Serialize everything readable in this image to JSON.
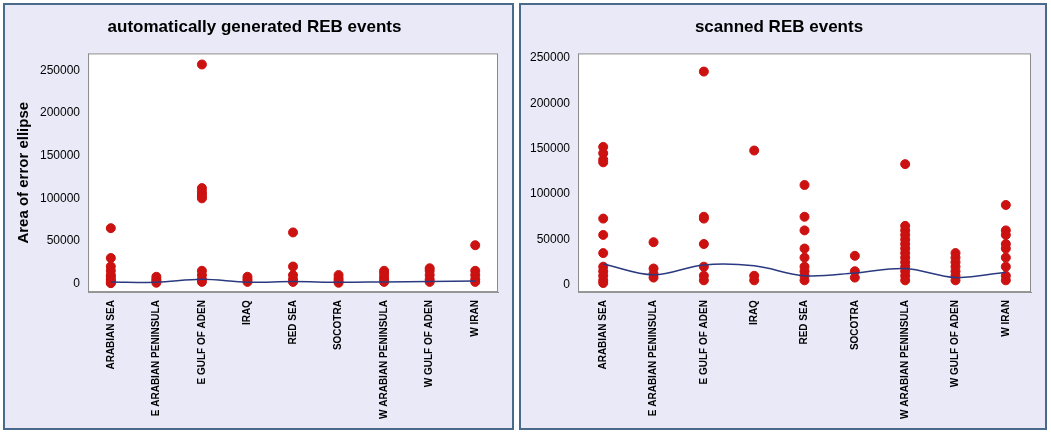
{
  "chart_data": [
    {
      "type": "scatter",
      "title": "automatically generated REB events",
      "y_label": "Area of error ellipse",
      "categories": [
        "ARABIAN SEA",
        "E ARABIAN PENINSULA",
        "E GULF OF ADEN",
        "IRAQ",
        "RED SEA",
        "SOCOTRA",
        "W ARABIAN PENINSULA",
        "W GULF OF ADEN",
        "W IRAN"
      ],
      "series": [
        {
          "type": "scatter",
          "color": "#cc1111",
          "marker": "circle",
          "values": [
            [
              65000,
              30000,
              20000,
              15000,
              10000,
              8000,
              5000,
              3000,
              1000,
              500
            ],
            [
              8000,
              5000,
              3000,
              1000
            ],
            [
              257000,
              112000,
              108000,
              105000,
              102000,
              100000,
              15000,
              10000,
              5000,
              2000
            ],
            [
              8000,
              5000,
              2000
            ],
            [
              60000,
              20000,
              10000,
              5000,
              2000
            ],
            [
              10000,
              6000,
              3000,
              1000
            ],
            [
              15000,
              12000,
              8000,
              5000,
              2000
            ],
            [
              18000,
              15000,
              10000,
              5000,
              2000
            ],
            [
              45000,
              15000,
              10000,
              5000,
              2000
            ]
          ]
        },
        {
          "type": "line",
          "color": "#2b3a80",
          "line_style": "solid",
          "values": [
            2000,
            1500,
            5000,
            1500,
            2500,
            1500,
            2000,
            2500,
            3000
          ]
        }
      ],
      "ylim": [
        -10000,
        270000
      ],
      "yticks": [
        0,
        50000,
        100000,
        150000,
        200000,
        250000
      ],
      "grid": false
    },
    {
      "type": "scatter",
      "title": "scanned REB events",
      "categories": [
        "ARABIAN SEA",
        "E ARABIAN PENINSULA",
        "E GULF OF ADEN",
        "IRAQ",
        "RED SEA",
        "SOCOTRA",
        "W ARABIAN PENINSULA",
        "W GULF OF ADEN",
        "W IRAN"
      ],
      "series": [
        {
          "type": "scatter",
          "color": "#cc1111",
          "marker": "circle",
          "values": [
            [
              152000,
              145000,
              138000,
              135000,
              73000,
              55000,
              35000,
              20000,
              15000,
              10000,
              5000,
              2000
            ],
            [
              47000,
              18000,
              12000,
              8000
            ],
            [
              235000,
              75000,
              73000,
              45000,
              20000,
              10000,
              5000
            ],
            [
              148000,
              10000,
              5000
            ],
            [
              110000,
              75000,
              60000,
              40000,
              30000,
              20000,
              15000,
              10000,
              5000
            ],
            [
              32000,
              15000,
              8000
            ],
            [
              133000,
              65000,
              60000,
              55000,
              50000,
              45000,
              40000,
              35000,
              30000,
              25000,
              20000,
              15000,
              10000,
              5000
            ],
            [
              35000,
              30000,
              25000,
              20000,
              15000,
              10000,
              5000
            ],
            [
              88000,
              60000,
              55000,
              45000,
              40000,
              30000,
              20000,
              10000,
              5000
            ]
          ]
        },
        {
          "type": "line",
          "color": "#2b3a80",
          "line_style": "solid",
          "values": [
            23000,
            11000,
            22000,
            21000,
            10000,
            13000,
            18000,
            8000,
            14000
          ]
        }
      ],
      "ylim": [
        -8000,
        255000
      ],
      "yticks": [
        0,
        50000,
        100000,
        150000,
        200000,
        250000
      ],
      "grid": false
    }
  ]
}
